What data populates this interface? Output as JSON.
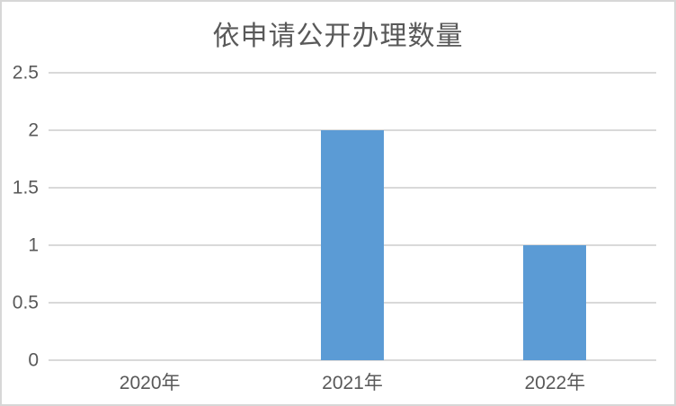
{
  "chart_data": {
    "type": "bar",
    "title": "依申请公开办理数量",
    "categories": [
      "2020年",
      "2021年",
      "2022年"
    ],
    "values": [
      0,
      2,
      1
    ],
    "xlabel": "",
    "ylabel": "",
    "ylim": [
      0,
      2.5
    ],
    "ytick_values": [
      0,
      0.5,
      1,
      1.5,
      2,
      2.5
    ],
    "ytick_labels": [
      "0",
      "0.5",
      "1",
      "1.5",
      "2",
      "2.5"
    ],
    "grid": true,
    "legend": "none",
    "colors": {
      "bar": "#5b9bd5",
      "gridline": "#d9d9d9",
      "axis_text": "#595959",
      "title_text": "#595959",
      "frame_border": "#d7d7d7",
      "background": "#ffffff"
    }
  }
}
